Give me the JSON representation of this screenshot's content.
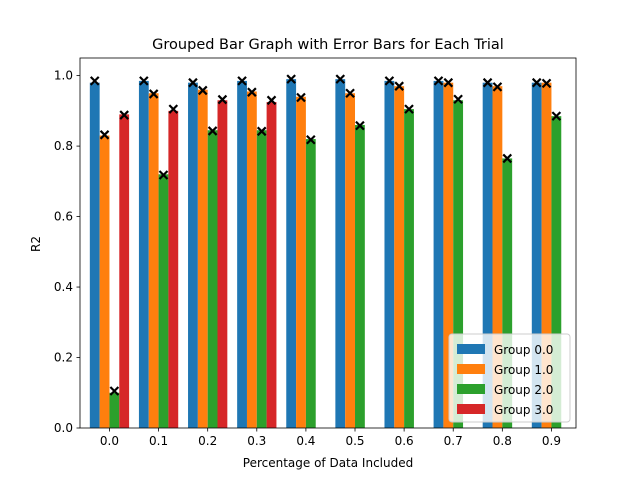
{
  "chart_data": {
    "type": "bar",
    "title": "Grouped Bar Graph with Error Bars for Each Trial",
    "xlabel": "Percentage of Data Included",
    "ylabel": "R2",
    "categories": [
      "0.0",
      "0.1",
      "0.2",
      "0.3",
      "0.4",
      "0.5",
      "0.6",
      "0.7",
      "0.8",
      "0.9"
    ],
    "ylim": [
      0,
      1.05
    ],
    "yticks": [
      "0.0",
      "0.2",
      "0.4",
      "0.6",
      "0.8",
      "1.0"
    ],
    "ytick_values": [
      0,
      0.2,
      0.4,
      0.6,
      0.8,
      1.0
    ],
    "grid": false,
    "legend_placement": "lower-right",
    "series": [
      {
        "name": "Group 0.0",
        "color": "#1f77b4",
        "values": [
          0.98,
          0.985,
          0.98,
          0.985,
          0.99,
          0.99,
          0.985,
          0.985,
          0.98,
          0.98
        ],
        "markers": [
          0.985,
          0.985,
          0.98,
          0.985,
          0.99,
          0.99,
          0.985,
          0.985,
          0.98,
          0.98
        ]
      },
      {
        "name": "Group 1.0",
        "color": "#ff7f0e",
        "values": [
          0.83,
          0.95,
          0.96,
          0.955,
          0.94,
          0.95,
          0.97,
          0.98,
          0.97,
          0.98
        ],
        "markers": [
          0.832,
          0.948,
          0.958,
          0.953,
          0.938,
          0.95,
          0.97,
          0.98,
          0.968,
          0.978
        ]
      },
      {
        "name": "Group 2.0",
        "color": "#2ca02c",
        "values": [
          0.1,
          0.72,
          0.845,
          0.845,
          0.82,
          0.86,
          0.905,
          0.93,
          0.765,
          0.885
        ],
        "markers": [
          0.105,
          0.718,
          0.843,
          0.842,
          0.818,
          0.858,
          0.905,
          0.933,
          0.765,
          0.885
        ]
      },
      {
        "name": "Group 3.0",
        "color": "#d62728",
        "values": [
          0.89,
          0.9,
          0.93,
          0.925,
          null,
          null,
          null,
          null,
          null,
          null
        ],
        "markers": [
          0.888,
          0.905,
          0.932,
          0.93,
          null,
          null,
          null,
          null,
          null,
          null
        ]
      }
    ]
  }
}
